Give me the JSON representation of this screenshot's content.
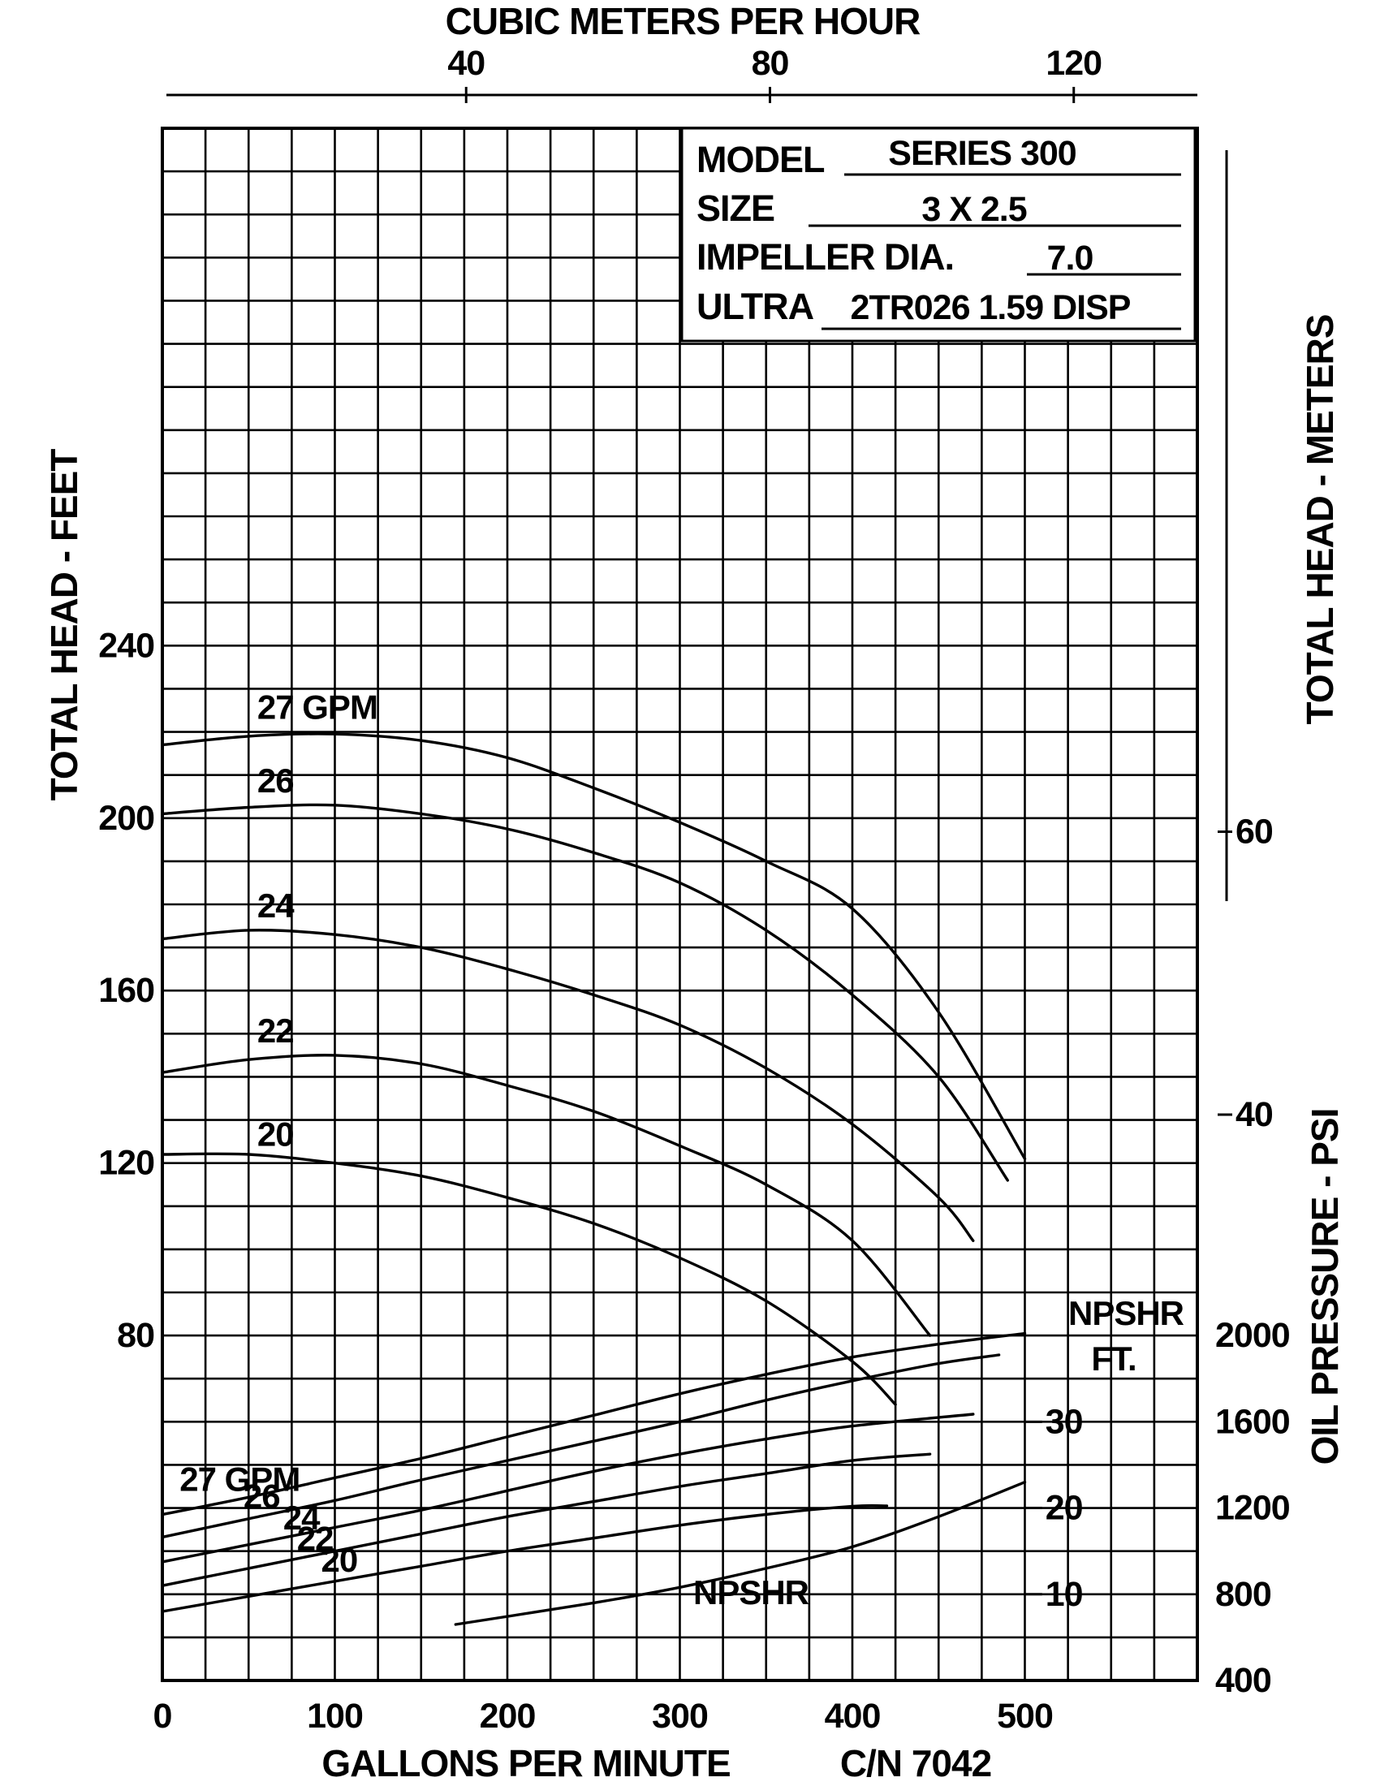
{
  "chart_data": {
    "type": "line",
    "top_axis": {
      "title": "CUBIC METERS PER HOUR",
      "ticks": [
        40,
        80,
        120
      ],
      "tick_labels": [
        "40",
        "80",
        "120"
      ]
    },
    "x_axis": {
      "title": "GALLONS PER MINUTE",
      "range": [
        0,
        600
      ],
      "ticks": [
        0,
        100,
        200,
        300,
        400,
        500
      ],
      "tick_labels": [
        "0",
        "100",
        "200",
        "300",
        "400",
        "500"
      ]
    },
    "left_axis": {
      "title": "TOTAL HEAD - FEET",
      "range": [
        0,
        360
      ],
      "ticks": [
        80,
        120,
        160,
        200,
        240
      ],
      "tick_labels": [
        "80",
        "120",
        "160",
        "200",
        "240"
      ]
    },
    "right_axis_meters": {
      "title": "TOTAL HEAD - METERS",
      "ticks": [
        40,
        60
      ],
      "tick_labels": [
        "40",
        "60"
      ]
    },
    "right_axis_psi": {
      "title": "OIL PRESSURE - PSI",
      "range": [
        400,
        2000
      ],
      "ticks": [
        400,
        800,
        1200,
        1600,
        2000
      ],
      "tick_labels": [
        "400",
        "800",
        "1200",
        "1600",
        "2000"
      ]
    },
    "npshr_axis": {
      "title": "NPSHR",
      "unit": "FT.",
      "ticks": [
        10,
        20,
        30
      ],
      "tick_labels": [
        "10",
        "20",
        "30"
      ]
    },
    "grid": true,
    "info_box": {
      "model_label": "MODEL",
      "model_value": "SERIES 300",
      "size_label": "SIZE",
      "size_value": "3 X 2.5",
      "impeller_label": "IMPELLER DIA.",
      "impeller_value": "7.0",
      "ultra_label": "ULTRA",
      "ultra_value": "2TR026 1.59 DISP"
    },
    "cn_label": "C/N 7042",
    "head_series": [
      {
        "name": "27 GPM",
        "x": [
          0,
          50,
          100,
          150,
          200,
          250,
          300,
          350,
          400,
          450,
          500
        ],
        "y": [
          217,
          219,
          219.5,
          218,
          214,
          207,
          199,
          190,
          179,
          155,
          121
        ]
      },
      {
        "name": "26",
        "x": [
          0,
          50,
          100,
          150,
          200,
          250,
          300,
          350,
          400,
          450,
          490
        ],
        "y": [
          201,
          202.5,
          203,
          201,
          197.5,
          192,
          185,
          174,
          159,
          140,
          116
        ]
      },
      {
        "name": "24",
        "x": [
          0,
          50,
          100,
          150,
          200,
          250,
          300,
          350,
          400,
          450,
          470
        ],
        "y": [
          172,
          174,
          173,
          170,
          165,
          159,
          152,
          142,
          129,
          112,
          102
        ]
      },
      {
        "name": "22",
        "x": [
          0,
          50,
          100,
          150,
          200,
          250,
          300,
          350,
          400,
          445
        ],
        "y": [
          141,
          144,
          145,
          143,
          138,
          132,
          124,
          115,
          102,
          80
        ]
      },
      {
        "name": "20",
        "x": [
          0,
          50,
          100,
          150,
          200,
          250,
          300,
          350,
          400,
          425
        ],
        "y": [
          122,
          122,
          120,
          117,
          112,
          106,
          98,
          88,
          74,
          64
        ]
      }
    ],
    "pressure_series": [
      {
        "name": "27 GPM",
        "x": [
          0,
          50,
          100,
          150,
          200,
          250,
          300,
          350,
          400,
          450,
          500
        ],
        "y": [
          1170,
          1250,
          1340,
          1430,
          1530,
          1630,
          1730,
          1820,
          1900,
          1960,
          2010
        ]
      },
      {
        "name": "26",
        "x": [
          0,
          50,
          100,
          150,
          200,
          250,
          300,
          350,
          400,
          450,
          485
        ],
        "y": [
          1065,
          1150,
          1235,
          1330,
          1420,
          1510,
          1600,
          1700,
          1790,
          1870,
          1910
        ]
      },
      {
        "name": "24",
        "x": [
          0,
          50,
          100,
          150,
          200,
          250,
          300,
          350,
          400,
          470
        ],
        "y": [
          950,
          1030,
          1110,
          1190,
          1280,
          1370,
          1450,
          1520,
          1580,
          1635
        ]
      },
      {
        "name": "22",
        "x": [
          0,
          50,
          100,
          150,
          200,
          250,
          300,
          350,
          400,
          445
        ],
        "y": [
          840,
          920,
          1000,
          1080,
          1160,
          1230,
          1300,
          1360,
          1420,
          1450
        ]
      },
      {
        "name": "20",
        "x": [
          0,
          50,
          100,
          150,
          200,
          250,
          300,
          350,
          400,
          420
        ],
        "y": [
          720,
          790,
          860,
          930,
          1000,
          1060,
          1120,
          1170,
          1208,
          1210
        ]
      }
    ],
    "npshr_series": {
      "name": "NPSHR",
      "x": [
        170,
        250,
        300,
        350,
        400,
        450,
        500
      ],
      "y": [
        6.5,
        9,
        10.8,
        13,
        15.5,
        19,
        23
      ]
    }
  }
}
